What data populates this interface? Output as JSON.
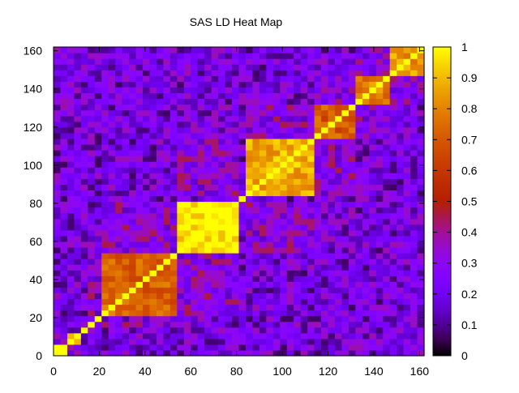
{
  "chart_data": {
    "type": "heatmap",
    "title": "SAS LD Heat Map",
    "xlabel": "",
    "ylabel": "",
    "xlim": [
      0,
      162
    ],
    "ylim": [
      0,
      162
    ],
    "x_ticks": [
      0,
      20,
      40,
      60,
      80,
      100,
      120,
      140,
      160
    ],
    "y_ticks": [
      0,
      20,
      40,
      60,
      80,
      100,
      120,
      140,
      160
    ],
    "colorbar": {
      "range": [
        0,
        1
      ],
      "ticks": [
        0,
        0.1,
        0.2,
        0.3,
        0.4,
        0.5,
        0.6,
        0.7,
        0.8,
        0.9,
        1
      ],
      "tick_labels": [
        "0",
        "0.1",
        "0.2",
        "0.3",
        "0.4",
        "0.5",
        "0.6",
        "0.7",
        "0.8",
        "0.9",
        "1"
      ],
      "colormap": "gnuplot-pm3d-hot (black → purple → red → orange → yellow)"
    },
    "blocks": [
      {
        "name": "block-1",
        "start": 0,
        "end": 5,
        "value": 0.95
      },
      {
        "name": "block-2",
        "start": 6,
        "end": 12,
        "value": 0.9
      },
      {
        "name": "block-3",
        "start": 14,
        "end": 19,
        "value": 0.92
      },
      {
        "name": "block-4",
        "start": 20,
        "end": 54,
        "value": 0.72
      },
      {
        "name": "block-5",
        "start": 54,
        "end": 82,
        "value": 0.97
      },
      {
        "name": "block-6",
        "start": 84,
        "end": 114,
        "value": 0.88
      },
      {
        "name": "block-7",
        "start": 114,
        "end": 131,
        "value": 0.7
      },
      {
        "name": "block-8",
        "start": 131,
        "end": 148,
        "value": 0.78
      },
      {
        "name": "block-9",
        "start": 148,
        "end": 162,
        "value": 0.85
      }
    ],
    "grid": false,
    "legend": "colorbar-right"
  }
}
